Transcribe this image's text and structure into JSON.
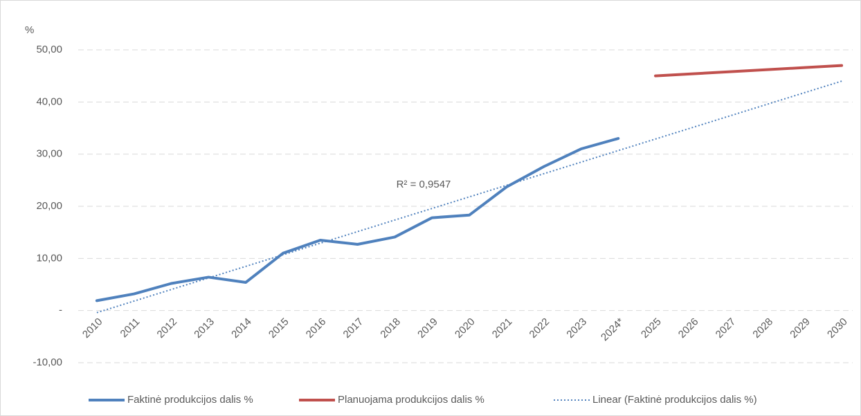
{
  "chart_data": {
    "type": "line",
    "y_label": "%",
    "categories": [
      "2010",
      "2011",
      "2012",
      "2013",
      "2014",
      "2015",
      "2016",
      "2017",
      "2018",
      "2019",
      "2020",
      "2021",
      "2022",
      "2023",
      "2024*",
      "2025",
      "2026",
      "2027",
      "2028",
      "2029",
      "2030"
    ],
    "series": [
      {
        "name": "Faktinė produkcijos dalis %",
        "color": "#4f81bd",
        "values": [
          1.9,
          3.2,
          5.2,
          6.4,
          5.4,
          11.0,
          13.5,
          12.7,
          14.1,
          17.8,
          18.3,
          23.7,
          27.6,
          31.0,
          33.0,
          null,
          null,
          null,
          null,
          null,
          null
        ]
      },
      {
        "name": "Planuojama produkcijos dalis %",
        "color": "#c0504d",
        "values": [
          null,
          null,
          null,
          null,
          null,
          null,
          null,
          null,
          null,
          null,
          null,
          null,
          null,
          null,
          null,
          45.0,
          45.4,
          45.8,
          46.2,
          46.6,
          47.0
        ]
      }
    ],
    "trendline": {
      "name": "Linear (Faktinė produkcijos dalis %)",
      "color": "#4f81bd",
      "start": -0.4,
      "end": 44.0,
      "annotation": "R² = 0,9547"
    },
    "ylim": [
      -10,
      50
    ],
    "yticks": [
      {
        "value": -10,
        "label": "-10,00"
      },
      {
        "value": 0,
        "label": "-"
      },
      {
        "value": 10,
        "label": "10,00"
      },
      {
        "value": 20,
        "label": "20,00"
      },
      {
        "value": 30,
        "label": "30,00"
      },
      {
        "value": 40,
        "label": "40,00"
      },
      {
        "value": 50,
        "label": "50,00"
      }
    ],
    "grid": true,
    "legend": "bottom"
  }
}
